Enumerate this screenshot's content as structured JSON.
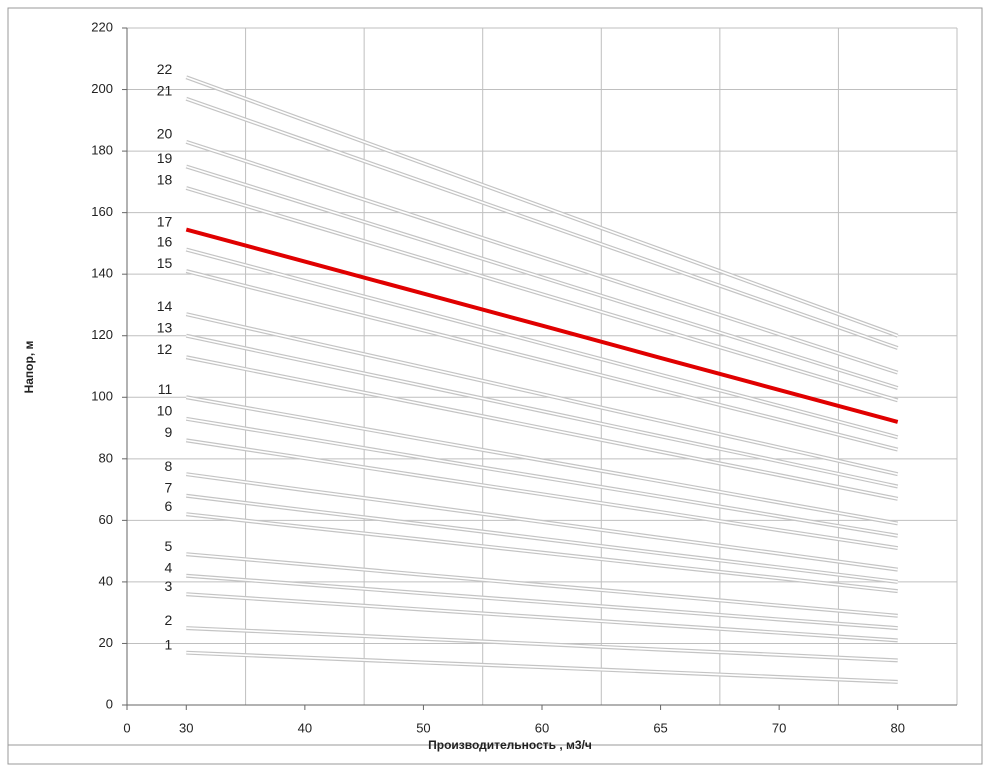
{
  "chart_data": {
    "type": "line",
    "x_label": "Производительность , м3/ч",
    "y_label": "Напор, м",
    "categories": [
      "0",
      "30",
      "40",
      "50",
      "60",
      "65",
      "70",
      "80"
    ],
    "ylim": [
      0,
      220
    ],
    "yticks": [
      0,
      20,
      40,
      60,
      80,
      100,
      120,
      140,
      160,
      180,
      200,
      220
    ],
    "grid": true,
    "series": [
      {
        "name": "1",
        "color": "#c4c4c4",
        "values": [
          null,
          17,
          15.4,
          13.8,
          12.3,
          10.7,
          9.1,
          7.5
        ]
      },
      {
        "name": "2",
        "color": "#c4c4c4",
        "values": [
          null,
          25,
          23.3,
          21.5,
          19.8,
          18,
          16.3,
          14.5
        ]
      },
      {
        "name": "3",
        "color": "#c4c4c4",
        "values": [
          null,
          36,
          33.5,
          31,
          28.5,
          26,
          23.5,
          21
        ]
      },
      {
        "name": "4",
        "color": "#c4c4c4",
        "values": [
          null,
          42,
          39.2,
          36.3,
          33.5,
          30.7,
          27.8,
          25
        ]
      },
      {
        "name": "5",
        "color": "#c4c4c4",
        "values": [
          null,
          49,
          45.7,
          42.3,
          39,
          35.7,
          32.3,
          29
        ]
      },
      {
        "name": "6",
        "color": "#c4c4c4",
        "values": [
          null,
          62,
          57.8,
          53.7,
          49.5,
          45.3,
          41.2,
          37
        ]
      },
      {
        "name": "7",
        "color": "#c4c4c4",
        "values": [
          null,
          68,
          63.3,
          58.7,
          54,
          49.3,
          44.7,
          40
        ]
      },
      {
        "name": "8",
        "color": "#c4c4c4",
        "values": [
          null,
          75,
          69.8,
          64.7,
          59.5,
          54.3,
          49.2,
          44
        ]
      },
      {
        "name": "9",
        "color": "#c4c4c4",
        "values": [
          null,
          86,
          80.2,
          74.3,
          68.5,
          62.7,
          56.8,
          51
        ]
      },
      {
        "name": "10",
        "color": "#c4c4c4",
        "values": [
          null,
          93,
          86.7,
          80.3,
          74,
          67.7,
          61.3,
          55
        ]
      },
      {
        "name": "11",
        "color": "#c4c4c4",
        "values": [
          null,
          100,
          93.2,
          86.3,
          79.5,
          72.7,
          65.8,
          59
        ]
      },
      {
        "name": "12",
        "color": "#c4c4c4",
        "values": [
          null,
          113,
          105.3,
          97.7,
          90,
          82.3,
          74.7,
          67
        ]
      },
      {
        "name": "13",
        "color": "#c4c4c4",
        "values": [
          null,
          120,
          111.8,
          103.7,
          95.5,
          87.3,
          79.2,
          71
        ]
      },
      {
        "name": "14",
        "color": "#c4c4c4",
        "values": [
          null,
          127,
          118.3,
          109.7,
          101,
          92.3,
          83.7,
          75
        ]
      },
      {
        "name": "15",
        "color": "#c4c4c4",
        "values": [
          null,
          141,
          131.3,
          121.7,
          112,
          102.3,
          92.7,
          83
        ]
      },
      {
        "name": "16",
        "color": "#c4c4c4",
        "values": [
          null,
          148,
          137.8,
          127.7,
          117.5,
          107.3,
          97.2,
          87
        ]
      },
      {
        "name": "17",
        "color": "#e00000",
        "values": [
          null,
          154.5,
          144.1,
          133.7,
          123.3,
          112.8,
          102.4,
          92
        ]
      },
      {
        "name": "18",
        "color": "#c4c4c4",
        "values": [
          null,
          168,
          156.5,
          145,
          133.5,
          122,
          110.5,
          99
        ]
      },
      {
        "name": "19",
        "color": "#c4c4c4",
        "values": [
          null,
          175,
          163,
          151,
          139,
          127,
          115,
          103
        ]
      },
      {
        "name": "20",
        "color": "#c4c4c4",
        "values": [
          null,
          183,
          170.5,
          158,
          145.5,
          133,
          120.5,
          108
        ]
      },
      {
        "name": "21",
        "color": "#c4c4c4",
        "values": [
          null,
          197,
          183.5,
          170,
          156.5,
          143,
          129.5,
          116
        ]
      },
      {
        "name": "22",
        "color": "#c4c4c4",
        "values": [
          null,
          204,
          190,
          176,
          162,
          148,
          134,
          120
        ]
      }
    ]
  }
}
